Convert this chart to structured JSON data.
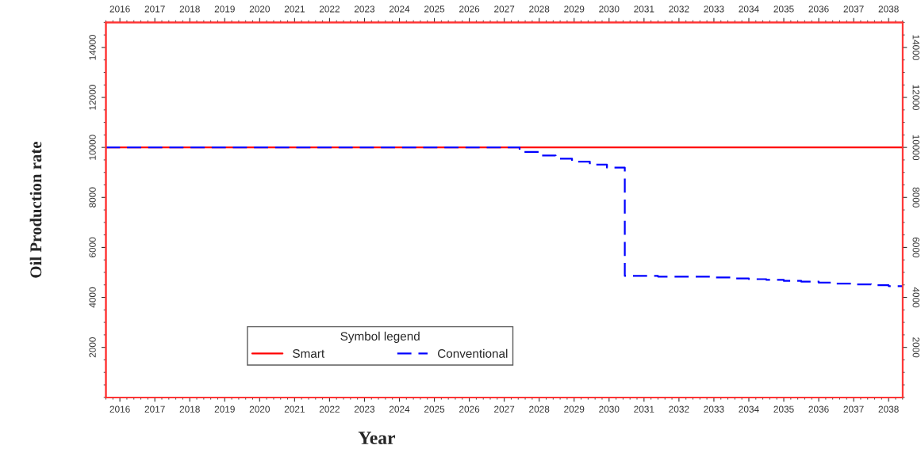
{
  "chart_data": {
    "type": "step",
    "xlabel": "Year",
    "ylabel": "Oil Production rate",
    "legend_title": "Symbol legend",
    "legend": "bottom left",
    "grid": false,
    "xlim": [
      2015.6,
      2038.4
    ],
    "xticks": [
      2016,
      2017,
      2018,
      2019,
      2020,
      2021,
      2022,
      2023,
      2024,
      2025,
      2026,
      2027,
      2028,
      2029,
      2030,
      2031,
      2032,
      2033,
      2034,
      2035,
      2036,
      2037,
      2038
    ],
    "x2lim": [
      2015.6,
      2038.4
    ],
    "x2ticks": [
      2016,
      2017,
      2018,
      2019,
      2020,
      2021,
      2022,
      2023,
      2024,
      2025,
      2026,
      2027,
      2028,
      2029,
      2030,
      2031,
      2032,
      2033,
      2034,
      2035,
      2036,
      2037,
      2038
    ],
    "ylim": [
      0,
      15000
    ],
    "yticks": [
      2000,
      4000,
      6000,
      8000,
      10000,
      12000,
      14000
    ],
    "y2lim": [
      0,
      15000
    ],
    "y2ticks": [
      2000,
      4000,
      6000,
      8000,
      10000,
      12000,
      14000
    ],
    "series": [
      {
        "name": "Smart",
        "color": "#ff0000",
        "line_style": "solid",
        "x": [
          2015.6,
          2038.4
        ],
        "values": [
          10000,
          10000
        ]
      },
      {
        "name": "Conventional",
        "color": "#0000ff",
        "line_style": "dashed",
        "x": [
          2015.6,
          2027.44,
          2027.99,
          2028.47,
          2028.94,
          2029.45,
          2029.94,
          2030.45,
          2031.4,
          2032.9,
          2033.5,
          2034,
          2034.5,
          2035,
          2035.5,
          2036,
          2036.5,
          2037,
          2037.5,
          2038,
          2038.4
        ],
        "values": [
          10000,
          9820,
          9680,
          9550,
          9430,
          9310,
          9190,
          4860,
          4830,
          4800,
          4760,
          4730,
          4700,
          4660,
          4630,
          4590,
          4550,
          4520,
          4490,
          4450,
          4420
        ]
      }
    ]
  }
}
